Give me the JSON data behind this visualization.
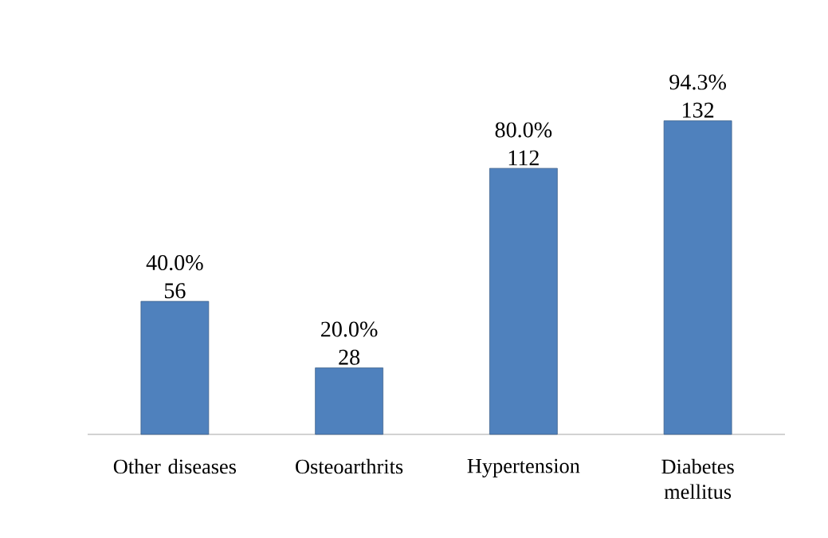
{
  "chart_data": {
    "type": "bar",
    "categories": [
      "Other diseases",
      "Osteoarthrits",
      "Hypertension",
      "Diabetes mellitus"
    ],
    "values": [
      56,
      28,
      112,
      132
    ],
    "color": "#4f81bd",
    "value_labels": [
      "40.0% 56",
      "20.0% 28",
      "80.0% 112",
      "94.3% 132"
    ]
  }
}
